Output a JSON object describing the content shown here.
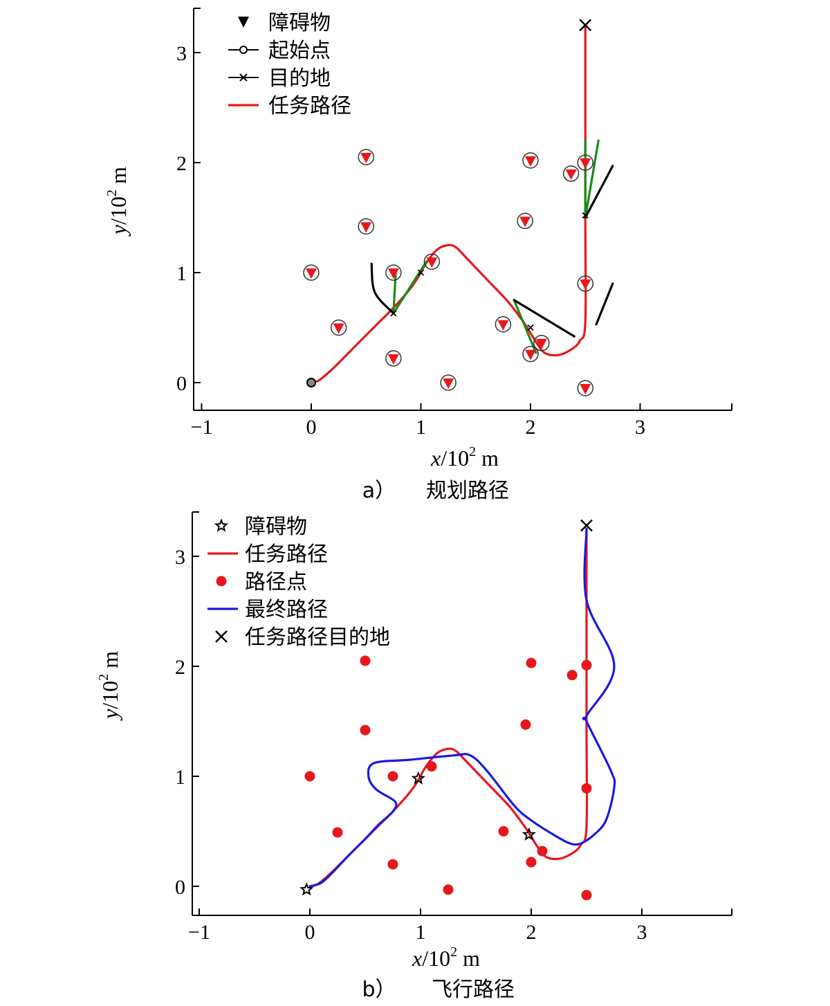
{
  "chart_data": [
    {
      "type": "line",
      "caption_letter": "a）",
      "caption": "规划路径",
      "xlabel_var": "x",
      "xlabel_unit": "/10",
      "xlabel_exp": "2",
      "xlabel_m": " m",
      "ylabel_var": "y",
      "ylabel_unit": "/10",
      "ylabel_exp": "2",
      "ylabel_m": " m",
      "xlim": [
        -1.1,
        3.8
      ],
      "ylim": [
        -0.25,
        3.4
      ],
      "xticks": [
        -1,
        0,
        1,
        2,
        3
      ],
      "yticks": [
        0,
        1,
        2,
        3
      ],
      "legend": [
        "障碍物",
        "起始点",
        "目的地",
        "任务路径"
      ],
      "colors": {
        "obstacle": "#e8171c",
        "path": "#e8171c",
        "branch_green": "#1a8a1a",
        "branch_black": "#000000"
      },
      "series": [
        {
          "name": "障碍物",
          "type": "scatter",
          "marker": "triangle-down",
          "x": [
            0.5,
            0.5,
            0,
            0.25,
            0.75,
            0.75,
            1.1,
            1.25,
            2.0,
            1.95,
            2.37,
            2.5,
            1.75,
            2.0,
            2.1,
            2.5,
            2.5
          ],
          "y": [
            2.05,
            1.42,
            1.0,
            0.5,
            1.0,
            0.22,
            1.1,
            0.0,
            2.02,
            1.47,
            1.9,
            2.0,
            0.53,
            0.26,
            0.36,
            0.9,
            -0.05
          ]
        },
        {
          "name": "起始点",
          "type": "scatter",
          "marker": "circle",
          "x": [
            0
          ],
          "y": [
            0
          ]
        },
        {
          "name": "目的地",
          "type": "scatter",
          "marker": "x",
          "x": [
            2.5
          ],
          "y": [
            3.25
          ]
        },
        {
          "name": "任务路径",
          "type": "line",
          "x": [
            0,
            0.07,
            0.2,
            0.4,
            0.6,
            0.75,
            0.9,
            0.97,
            1.05,
            1.15,
            1.25,
            1.32,
            1.4,
            1.6,
            1.8,
            1.95,
            2.05,
            2.13,
            2.25,
            2.37,
            2.45,
            2.5,
            2.5,
            2.5
          ],
          "y": [
            0,
            0.02,
            0.13,
            0.33,
            0.53,
            0.68,
            0.85,
            0.95,
            1.09,
            1.21,
            1.25,
            1.23,
            1.15,
            0.94,
            0.73,
            0.53,
            0.37,
            0.27,
            0.25,
            0.3,
            0.38,
            0.55,
            1.5,
            3.25
          ]
        },
        {
          "name": "",
          "type": "line",
          "color": "green",
          "segments": [
            [
              [
                0.75,
                0.63
              ],
              [
                0.77,
                1.0
              ]
            ],
            [
              [
                0.75,
                0.63
              ],
              [
                1.05,
                1.1
              ]
            ],
            [
              [
                1.85,
                0.75
              ],
              [
                2.05,
                0.27
              ]
            ],
            [
              [
                2.5,
                1.5
              ],
              [
                2.5,
                2.2
              ]
            ],
            [
              [
                2.5,
                1.5
              ],
              [
                2.62,
                2.2
              ]
            ]
          ]
        },
        {
          "name": "",
          "type": "line",
          "color": "black",
          "segments": [
            [
              [
                0.75,
                0.63
              ],
              [
                0.58,
                0.82
              ],
              [
                0.55,
                1.08
              ]
            ],
            [
              [
                1.85,
                0.75
              ],
              [
                2.4,
                0.42
              ]
            ],
            [
              [
                2.5,
                1.5
              ],
              [
                2.75,
                1.97
              ]
            ],
            [
              [
                2.6,
                0.53
              ],
              [
                2.75,
                0.9
              ]
            ]
          ]
        },
        {
          "name": "",
          "type": "scatter",
          "marker": "x-small",
          "x": [
            0.75,
            1.0,
            2.0,
            2.5
          ],
          "y": [
            0.63,
            1.0,
            0.5,
            1.52
          ]
        }
      ]
    },
    {
      "type": "line",
      "caption_letter": "b）",
      "caption": "飞行路径",
      "xlabel_var": "x",
      "xlabel_unit": "/10",
      "xlabel_exp": "2",
      "xlabel_m": " m",
      "ylabel_var": "y",
      "ylabel_unit": "/10",
      "ylabel_exp": "2",
      "ylabel_m": " m",
      "xlim": [
        -1.1,
        3.8
      ],
      "ylim": [
        -0.25,
        3.4
      ],
      "xticks": [
        -1,
        0,
        1,
        2,
        3
      ],
      "yticks": [
        0,
        1,
        2,
        3
      ],
      "legend": [
        "障碍物",
        "任务路径",
        "路径点",
        "最终路径",
        "任务路径目的地"
      ],
      "colors": {
        "waypoint": "#e8171c",
        "path": "#e8171c",
        "final": "#1a1ae0"
      },
      "series": [
        {
          "name": "障碍物",
          "type": "scatter",
          "marker": "star",
          "x": [
            -0.03,
            0.98,
            1.98
          ],
          "y": [
            -0.03,
            0.98,
            0.47
          ]
        },
        {
          "name": "任务路径",
          "type": "line",
          "x": [
            0,
            0.07,
            0.2,
            0.4,
            0.6,
            0.75,
            0.9,
            0.97,
            1.05,
            1.15,
            1.25,
            1.32,
            1.4,
            1.6,
            1.8,
            1.95,
            2.05,
            2.13,
            2.25,
            2.37,
            2.45,
            2.5,
            2.5,
            2.5
          ],
          "y": [
            0,
            0.02,
            0.13,
            0.33,
            0.53,
            0.68,
            0.85,
            0.95,
            1.09,
            1.21,
            1.25,
            1.23,
            1.15,
            0.94,
            0.73,
            0.53,
            0.37,
            0.27,
            0.25,
            0.3,
            0.38,
            0.55,
            1.5,
            3.25
          ]
        },
        {
          "name": "路径点",
          "type": "scatter",
          "marker": "circle-filled",
          "x": [
            0.5,
            0.5,
            0,
            0.25,
            0.75,
            0.75,
            1.1,
            1.25,
            2.0,
            1.95,
            2.37,
            2.5,
            1.75,
            2.0,
            2.1,
            2.5,
            2.5
          ],
          "y": [
            2.05,
            1.42,
            1.0,
            0.49,
            1.0,
            0.2,
            1.09,
            -0.03,
            2.03,
            1.47,
            1.92,
            2.01,
            0.5,
            0.22,
            0.32,
            0.89,
            -0.08
          ]
        },
        {
          "name": "最终路径",
          "type": "line",
          "x": [
            0,
            0.1,
            0.2,
            0.35,
            0.5,
            0.62,
            0.75,
            0.77,
            0.6,
            0.53,
            0.58,
            0.9,
            1.3,
            1.45,
            1.6,
            1.85,
            2.0,
            2.2,
            2.35,
            2.45,
            2.58,
            2.68,
            2.75,
            2.72,
            2.5,
            2.5,
            2.75,
            2.5,
            2.5
          ],
          "y": [
            0,
            0.03,
            0.12,
            0.28,
            0.43,
            0.56,
            0.68,
            0.77,
            0.88,
            1.0,
            1.12,
            1.15,
            1.19,
            1.19,
            1.05,
            0.73,
            0.6,
            0.47,
            0.39,
            0.39,
            0.48,
            0.61,
            0.9,
            1.05,
            1.5,
            1.55,
            2.0,
            2.6,
            3.25
          ]
        },
        {
          "name": "任务路径目的地",
          "type": "scatter",
          "marker": "x",
          "x": [
            2.5
          ],
          "y": [
            3.28
          ]
        }
      ]
    }
  ]
}
